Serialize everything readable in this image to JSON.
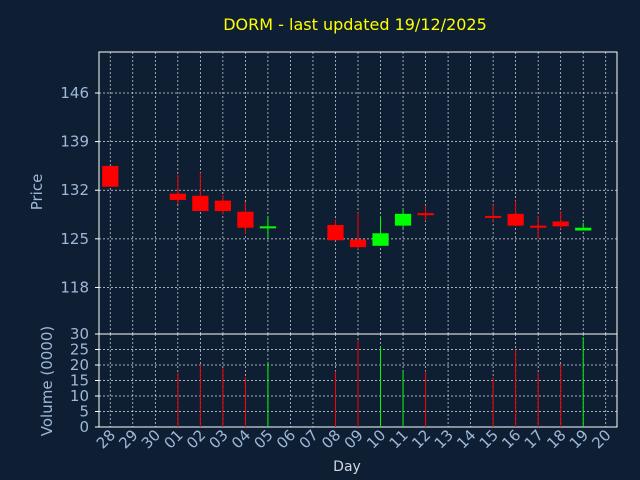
{
  "chart_data": {
    "type": "candlestick",
    "title": "DORM - last updated 19/12/2025",
    "x_label": "Day",
    "price_axis": {
      "label": "Price",
      "ticks": [
        146,
        139,
        132,
        125,
        118
      ],
      "range": [
        111.3,
        151.9
      ]
    },
    "volume_axis": {
      "label": "Volume (0000)",
      "ticks": [
        0,
        5,
        10,
        15,
        20,
        25,
        30
      ],
      "range": [
        0,
        30
      ]
    },
    "grid": true,
    "x_ticks": [
      "28",
      "29",
      "30",
      "01",
      "02",
      "03",
      "04",
      "05",
      "06",
      "07",
      "08",
      "09",
      "10",
      "11",
      "12",
      "13",
      "14",
      "15",
      "16",
      "17",
      "18",
      "19",
      "20"
    ],
    "candles": [
      {
        "day": "28",
        "open": 135.5,
        "close": 132.5,
        "high": 135.5,
        "low": 132.5,
        "volume": null
      },
      {
        "day": "01",
        "open": 131.5,
        "close": 130.6,
        "high": 134.2,
        "low": 130.0,
        "volume": 17.5
      },
      {
        "day": "02",
        "open": 131.2,
        "close": 129.0,
        "high": 134.5,
        "low": 129.0,
        "volume": 20.0
      },
      {
        "day": "03",
        "open": 130.5,
        "close": 129.0,
        "high": 131.3,
        "low": 128.6,
        "volume": 19.0
      },
      {
        "day": "04",
        "open": 128.9,
        "close": 126.6,
        "high": 130.3,
        "low": 125.7,
        "volume": 16.0
      },
      {
        "day": "05",
        "open": 126.6,
        "close": 126.8,
        "high": 128.3,
        "low": 125.0,
        "volume": 21.0
      },
      {
        "day": "08",
        "open": 127.0,
        "close": 124.8,
        "high": 127.8,
        "low": 124.8,
        "volume": 18.0
      },
      {
        "day": "09",
        "open": 124.9,
        "close": 123.8,
        "high": 128.8,
        "low": 123.5,
        "volume": 28.0
      },
      {
        "day": "10",
        "open": 124.0,
        "close": 125.8,
        "high": 128.3,
        "low": 124.0,
        "volume": 26.0
      },
      {
        "day": "11",
        "open": 126.9,
        "close": 128.6,
        "high": 129.3,
        "low": 126.5,
        "volume": 18.0
      },
      {
        "day": "12",
        "open": 128.7,
        "close": 128.4,
        "high": 129.8,
        "low": 127.6,
        "volume": 18.0
      },
      {
        "day": "15",
        "open": 128.3,
        "close": 128.2,
        "high": 129.9,
        "low": 127.5,
        "volume": 16.0
      },
      {
        "day": "16",
        "open": 128.6,
        "close": 126.9,
        "high": 130.5,
        "low": 126.8,
        "volume": 25.0
      },
      {
        "day": "17",
        "open": 126.9,
        "close": 126.6,
        "high": 128.3,
        "low": 125.0,
        "volume": 17.5
      },
      {
        "day": "18",
        "open": 127.5,
        "close": 126.8,
        "high": 129.0,
        "low": 126.4,
        "volume": 20.0
      },
      {
        "day": "19",
        "open": 126.2,
        "close": 126.6,
        "high": 127.3,
        "low": 126.2,
        "volume": 29.0
      }
    ],
    "colors": {
      "up": "#00ff00",
      "down": "#ff0000",
      "grid": "#ffffff",
      "frame": "#ffffff",
      "background": "#0f1f33",
      "title": "#ffff00",
      "tick": "#9fb8d8"
    }
  }
}
